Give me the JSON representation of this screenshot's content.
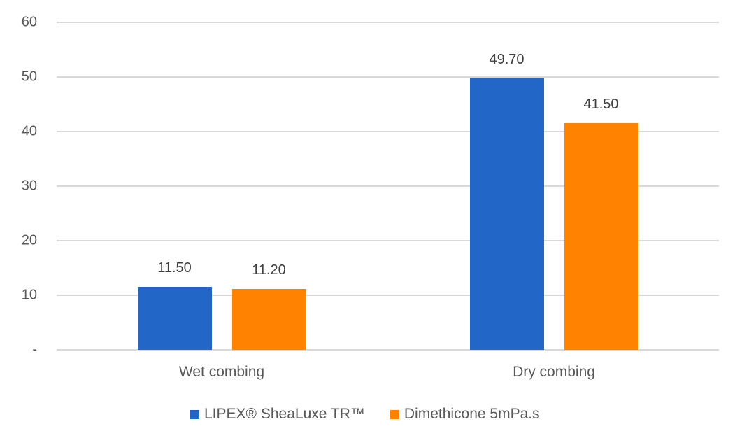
{
  "chart_data": {
    "type": "bar",
    "title": "",
    "xlabel": "",
    "ylabel": "",
    "ylim": [
      0,
      60
    ],
    "yticks": [
      "-",
      "10",
      "20",
      "30",
      "40",
      "50",
      "60"
    ],
    "categories": [
      "Wet combing",
      "Dry combing"
    ],
    "series": [
      {
        "name": "LIPEX® SheaLuxe TR™",
        "color": "#2266c8",
        "values": [
          11.5,
          49.7
        ],
        "labels": [
          "11.50",
          "49.70"
        ]
      },
      {
        "name": "Dimethicone 5mPa.s",
        "color": "#ff8300",
        "values": [
          11.2,
          41.5
        ],
        "labels": [
          "11.20",
          "41.50"
        ]
      }
    ],
    "grid": true,
    "legend_position": "bottom"
  }
}
